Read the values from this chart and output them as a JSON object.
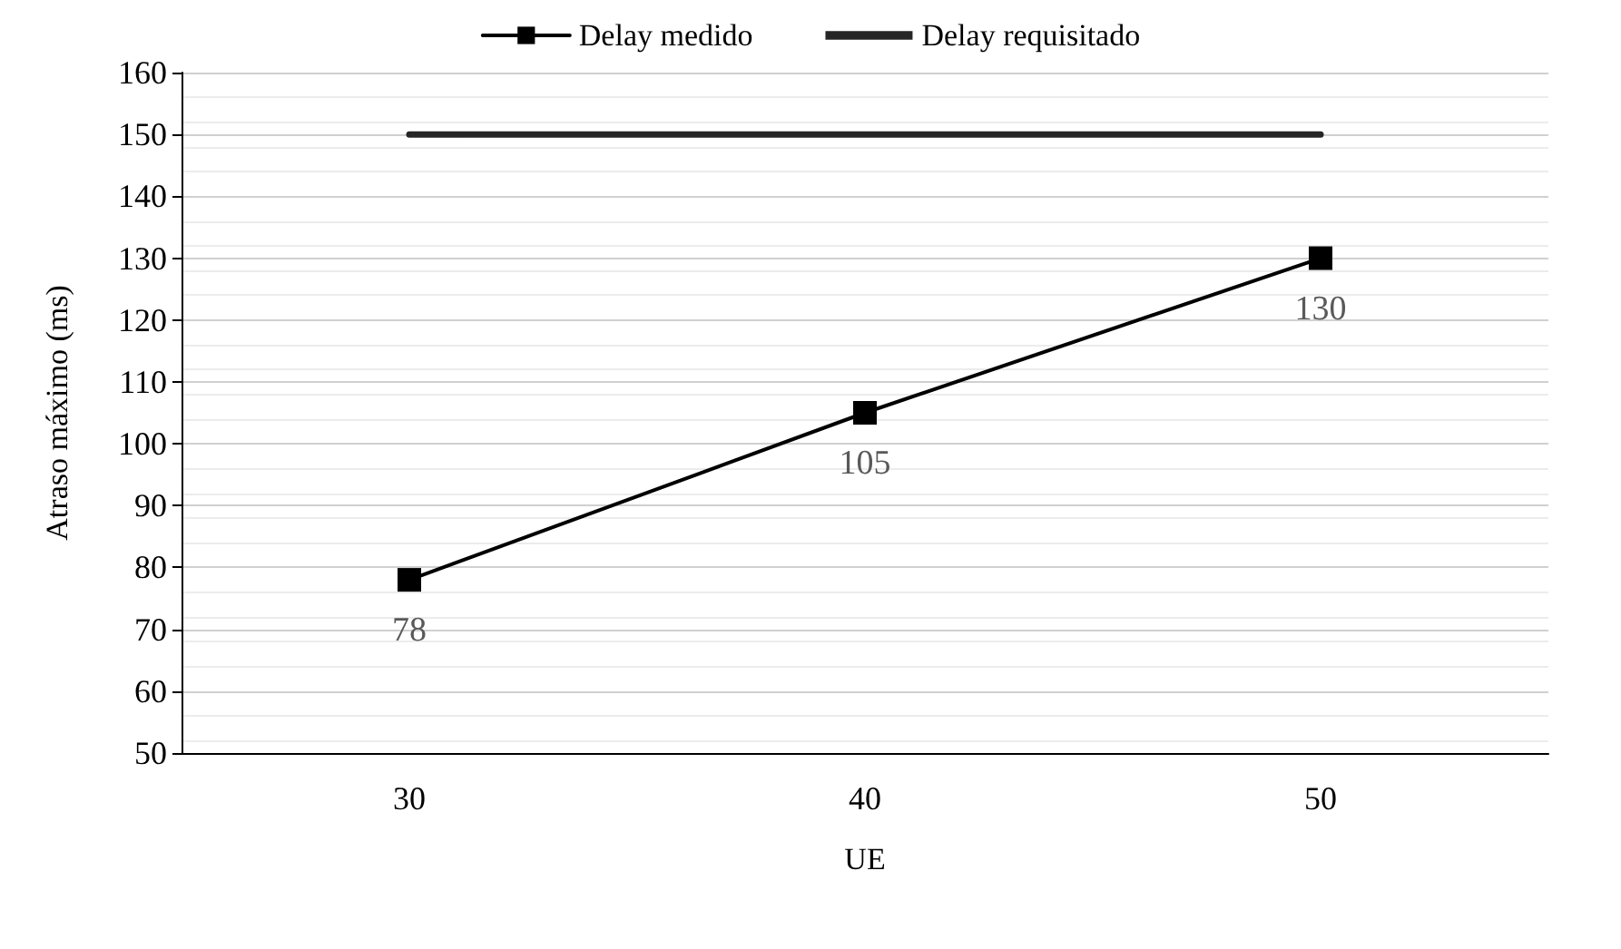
{
  "chart_data": {
    "type": "line",
    "xlabel": "UE",
    "ylabel": "Atraso máximo (ms)",
    "categories": [
      "30",
      "40",
      "50"
    ],
    "series": [
      {
        "name": "Delay medido",
        "color": "#000000",
        "values": [
          78,
          105,
          130
        ],
        "marker": "square",
        "value_labels": [
          "78",
          "105",
          "130"
        ]
      },
      {
        "name": "Delay requisitado",
        "color": "#262626",
        "values": [
          150,
          150,
          150
        ],
        "marker": "none"
      }
    ],
    "ylim": [
      50,
      160
    ],
    "yticks": [
      50,
      60,
      70,
      80,
      90,
      100,
      110,
      120,
      130,
      140,
      150,
      160
    ],
    "grid": "y",
    "legend": "top",
    "line_style": "solid"
  }
}
